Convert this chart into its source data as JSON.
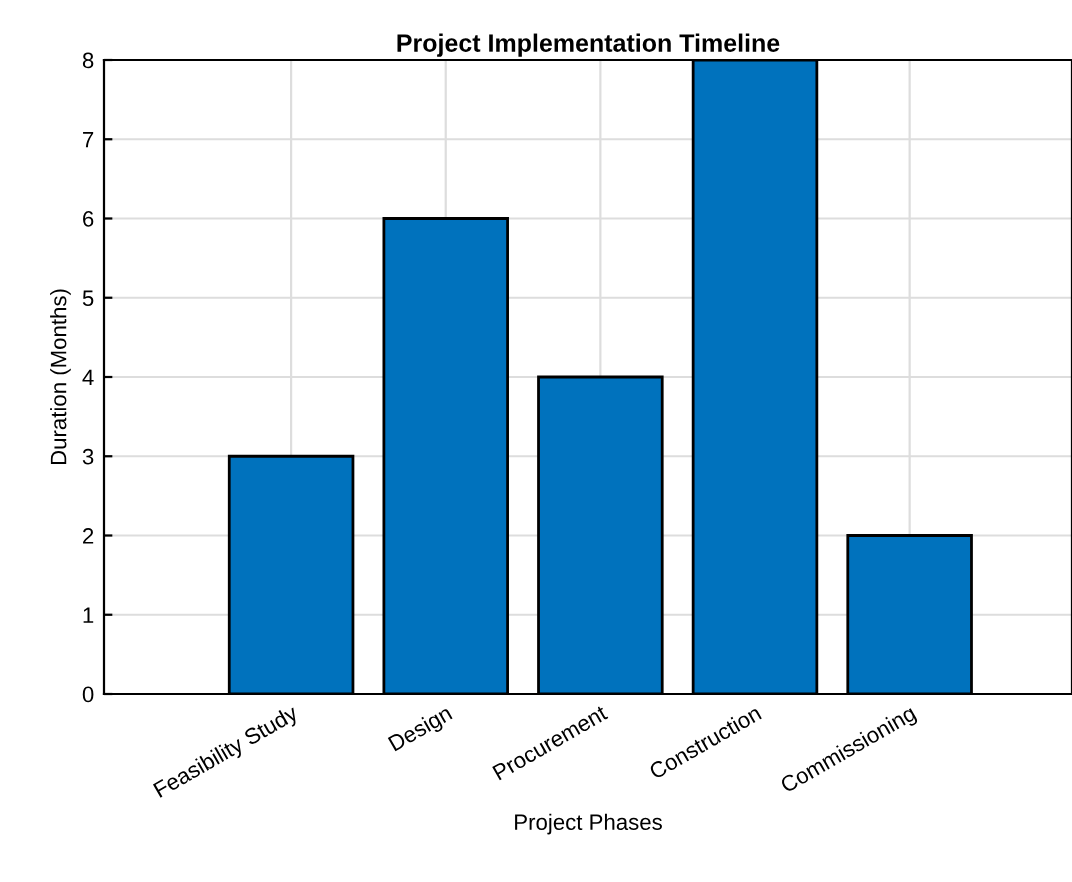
{
  "chart_data": {
    "type": "bar",
    "title": "Project Implementation Timeline",
    "xlabel": "Project Phases",
    "ylabel": "Duration (Months)",
    "categories": [
      "Feasibility Study",
      "Design",
      "Procurement",
      "Construction",
      "Commissioning"
    ],
    "values": [
      3,
      6,
      4,
      8,
      2
    ],
    "color": "#0072bd",
    "ylim": [
      0,
      8
    ],
    "yticks": [
      0,
      1,
      2,
      3,
      4,
      5,
      6,
      7,
      8
    ],
    "grid": true
  }
}
